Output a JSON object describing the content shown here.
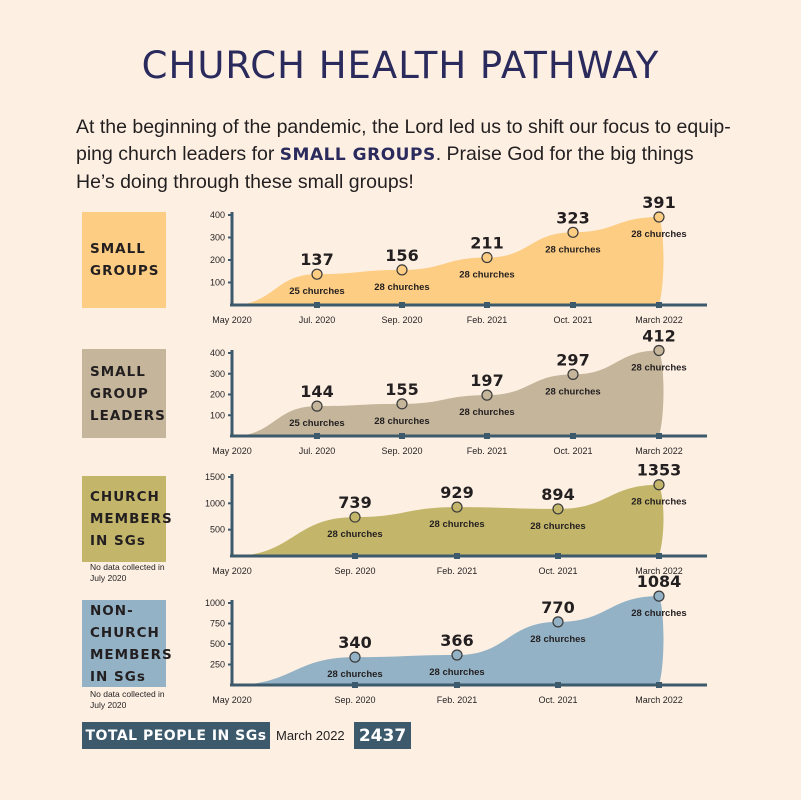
{
  "title": "CHURCH HEALTH PATHWAY",
  "intro": {
    "before": "At the beginning of the pandemic, the Lord led us to shift our focus to equip- ping church leaders for ",
    "highlight": "SMALL GROUPS",
    "after": ". Praise God for the big things He’s doing through these small groups!"
  },
  "notes": {
    "no_data": "No data collected in July 2020"
  },
  "total": {
    "label": "TOTAL PEOPLE IN SGs",
    "date": "March 2022",
    "value": "2437"
  },
  "colors": {
    "small_groups": "#fdcd83",
    "small_group_leaders": "#c4b59b",
    "church_members": "#c3b66b",
    "non_church_members": "#93b2c5",
    "axis": "#3d5a6c",
    "title": "#2a2a5c"
  },
  "chart_data": [
    {
      "type": "area",
      "label": [
        "SMALL",
        "GROUPS"
      ],
      "ylim": [
        0,
        400
      ],
      "yticks": [
        100,
        200,
        300,
        400
      ],
      "x": [
        "May 2020",
        "Jul. 2020",
        "Sep. 2020",
        "Feb. 2021",
        "Oct. 2021",
        "March 2022"
      ],
      "values": [
        0,
        137,
        156,
        211,
        323,
        391
      ],
      "annotations": [
        "",
        "25 churches",
        "28 churches",
        "28 churches",
        "28 churches",
        "28 churches"
      ]
    },
    {
      "type": "area",
      "label": [
        "SMALL",
        "GROUP",
        "LEADERS"
      ],
      "ylim": [
        0,
        400
      ],
      "yticks": [
        100,
        200,
        300,
        400
      ],
      "x": [
        "May 2020",
        "Jul. 2020",
        "Sep. 2020",
        "Feb. 2021",
        "Oct. 2021",
        "March 2022"
      ],
      "values": [
        0,
        144,
        155,
        197,
        297,
        412
      ],
      "annotations": [
        "",
        "25 churches",
        "28 churches",
        "28 churches",
        "28 churches",
        "28 churches"
      ]
    },
    {
      "type": "area",
      "label": [
        "CHURCH",
        "MEMBERS",
        "IN SGs"
      ],
      "ylim": [
        0,
        1500
      ],
      "yticks": [
        500,
        1000,
        1500
      ],
      "x": [
        "May 2020",
        "Sep. 2020",
        "Feb. 2021",
        "Oct. 2021",
        "March 2022"
      ],
      "values": [
        0,
        739,
        929,
        894,
        1353
      ],
      "annotations": [
        "",
        "28 churches",
        "28 churches",
        "28 churches",
        "28 churches"
      ]
    },
    {
      "type": "area",
      "label": [
        "NON-",
        "CHURCH",
        "MEMBERS",
        "IN SGs"
      ],
      "ylim": [
        0,
        1000
      ],
      "yticks": [
        250,
        500,
        750,
        1000
      ],
      "x": [
        "May 2020",
        "Sep. 2020",
        "Feb. 2021",
        "Oct. 2021",
        "March 2022"
      ],
      "values": [
        0,
        340,
        366,
        770,
        1084
      ],
      "annotations": [
        "",
        "28 churches",
        "28 churches",
        "28 churches",
        "28 churches"
      ]
    }
  ]
}
